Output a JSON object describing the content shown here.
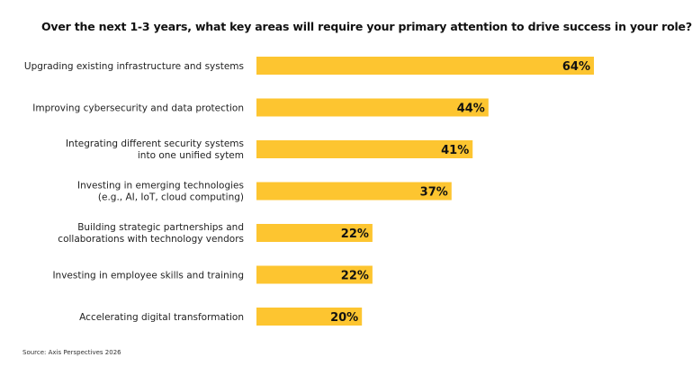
{
  "chart_data": {
    "type": "bar",
    "orientation": "horizontal",
    "title": "Over the next 1-3 years, what key areas will require your primary attention to drive success in your role?",
    "categories": [
      [
        "Upgrading existing infrastructure and systems"
      ],
      [
        "Improving cybersecurity and data protection"
      ],
      [
        "Integrating different security systems",
        "into one unified sytem"
      ],
      [
        "Investing in emerging technologies",
        "(e.g., AI, IoT, cloud computing)"
      ],
      [
        "Building strategic partnerships and",
        "collaborations with technology vendors"
      ],
      [
        "Investing in employee skills and training"
      ],
      [
        "Accelerating digital transformation"
      ]
    ],
    "values": [
      64,
      44,
      41,
      37,
      22,
      22,
      20
    ],
    "value_labels": [
      "64%",
      "44%",
      "41%",
      "37%",
      "22%",
      "22%",
      "20%"
    ],
    "unit": "%",
    "xlim": [
      0,
      64
    ],
    "grid": false,
    "bar_color": "#FDC530",
    "source": "Source: Axis Perspectives 2026"
  }
}
